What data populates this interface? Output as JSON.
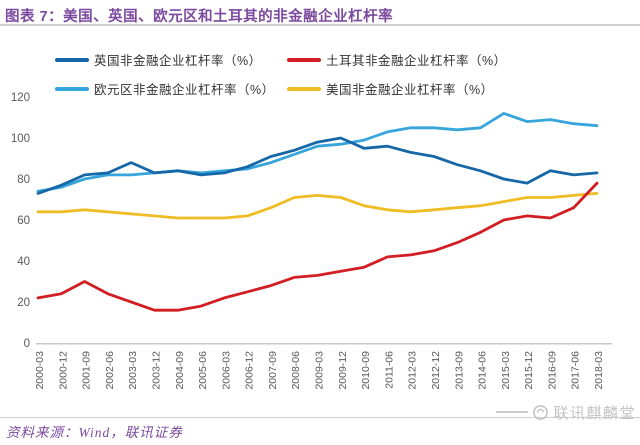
{
  "header": {
    "title": "图表 7：美国、英国、欧元区和土耳其的非金融企业杠杆率"
  },
  "chart_data": {
    "type": "line",
    "title": "美国、英国、欧元区和土耳其的非金融企业杠杆率",
    "categories": [
      "2000-03",
      "2000-12",
      "2001-09",
      "2002-06",
      "2003-03",
      "2003-12",
      "2004-09",
      "2005-06",
      "2006-03",
      "2006-12",
      "2007-09",
      "2008-06",
      "2009-03",
      "2009-12",
      "2010-09",
      "2011-06",
      "2012-03",
      "2012-12",
      "2013-09",
      "2014-06",
      "2015-03",
      "2015-12",
      "2016-09",
      "2017-06",
      "2018-03"
    ],
    "series": [
      {
        "name": "英国非金融企业杠杆率（%）",
        "color": "#1667A7",
        "values": [
          73,
          77,
          82,
          83,
          88,
          83,
          84,
          82,
          83,
          86,
          91,
          94,
          98,
          100,
          95,
          96,
          93,
          91,
          87,
          84,
          80,
          78,
          84,
          82,
          83
        ]
      },
      {
        "name": "土耳其非金融企业杠杆率（%）",
        "color": "#D21E22",
        "values": [
          22,
          24,
          30,
          24,
          20,
          16,
          16,
          18,
          22,
          25,
          28,
          32,
          33,
          35,
          37,
          42,
          43,
          45,
          49,
          54,
          60,
          62,
          61,
          66,
          78
        ]
      },
      {
        "name": "欧元区非金融企业杠杆率（%）",
        "color": "#36A5DC",
        "values": [
          74,
          76,
          80,
          82,
          82,
          83,
          84,
          83,
          84,
          85,
          88,
          92,
          96,
          97,
          99,
          103,
          105,
          105,
          104,
          105,
          112,
          108,
          109,
          107,
          106
        ]
      },
      {
        "name": "美国非金融企业杠杆率（%）",
        "color": "#EFBC23",
        "values": [
          64,
          64,
          65,
          64,
          63,
          62,
          61,
          61,
          61,
          62,
          66,
          71,
          72,
          71,
          67,
          65,
          64,
          65,
          66,
          67,
          69,
          71,
          71,
          72,
          73
        ]
      }
    ],
    "ylabel": "",
    "xlabel": "",
    "ylim": [
      0,
      120
    ],
    "yticks": [
      0,
      20,
      40,
      60,
      80,
      100,
      120
    ],
    "grid": false,
    "legend_position": "top"
  },
  "footer": {
    "source": "资料来源：Wind，联讯证券",
    "watermark": "联讯麒麟堂"
  }
}
